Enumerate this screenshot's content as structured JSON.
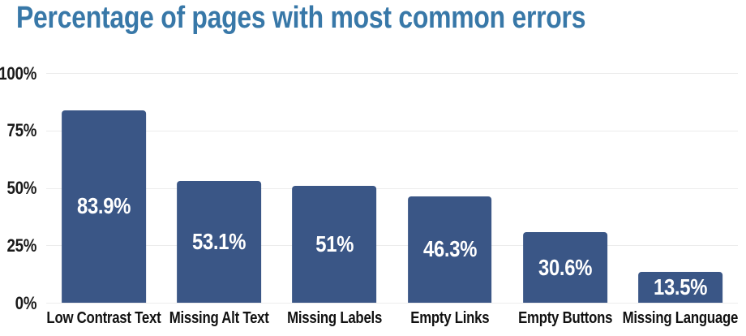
{
  "chart_data": {
    "type": "bar",
    "title": "Percentage of pages with most common errors",
    "categories": [
      "Low Contrast Text",
      "Missing Alt Text",
      "Missing Labels",
      "Empty Links",
      "Empty Buttons",
      "Missing Language"
    ],
    "values": [
      83.9,
      53.1,
      51,
      46.3,
      30.6,
      13.5
    ],
    "value_labels": [
      "83.9%",
      "53.1%",
      "51%",
      "46.3%",
      "30.6%",
      "13.5%"
    ],
    "xlabel": "",
    "ylabel": "",
    "ylim": [
      0,
      100
    ],
    "yticks": {
      "values": [
        100,
        75,
        50,
        25,
        0
      ],
      "labels": [
        "100%",
        "75%",
        "50%",
        "25%",
        "0%"
      ]
    },
    "grid": "horizontal",
    "legend": "none",
    "value_label_position": "inside-center",
    "colors": {
      "bar": "#3A5686",
      "title": "#3878A8",
      "value_label": "#FFFFFF",
      "tick_label": "#1A1A1A",
      "category_label": "#111111",
      "gridline": "#ECECEC",
      "background": "#FFFFFF"
    }
  }
}
